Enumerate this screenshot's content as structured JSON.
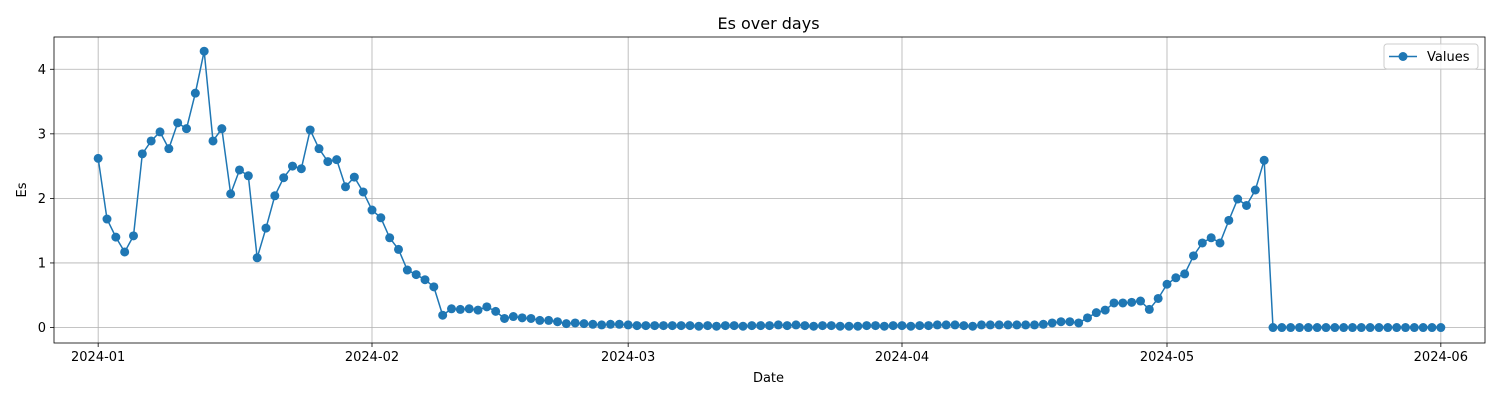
{
  "chart_data": {
    "type": "line",
    "title": "Es over days",
    "xlabel": "Date",
    "ylabel": "Es",
    "xlim": [
      "2023-12-27",
      "2024-06-06"
    ],
    "ylim": [
      -0.24,
      4.5
    ],
    "grid": true,
    "legend_position": "top-right",
    "x_ticks": [
      "2024-01-01",
      "2024-02-01",
      "2024-03-01",
      "2024-04-01",
      "2024-05-01",
      "2024-06-01"
    ],
    "x_tick_labels": [
      "2024-01",
      "2024-02",
      "2024-03",
      "2024-04",
      "2024-05",
      "2024-06"
    ],
    "y_ticks": [
      0,
      1,
      2,
      3,
      4
    ],
    "y_tick_labels": [
      "0",
      "1",
      "2",
      "3",
      "4"
    ],
    "x_start": "2024-01-01",
    "x_step_days": 1,
    "series": [
      {
        "name": "Values",
        "color": "#1f77b4",
        "marker": "circle",
        "values": [
          2.62,
          1.68,
          1.4,
          1.17,
          1.42,
          2.69,
          2.89,
          3.03,
          2.77,
          3.17,
          3.08,
          3.63,
          4.28,
          2.89,
          3.08,
          2.07,
          2.44,
          2.35,
          1.08,
          1.54,
          2.04,
          2.32,
          2.5,
          2.46,
          3.06,
          2.77,
          2.57,
          2.6,
          2.18,
          2.33,
          2.1,
          1.82,
          1.7,
          1.39,
          1.21,
          0.89,
          0.82,
          0.74,
          0.63,
          0.19,
          0.29,
          0.28,
          0.29,
          0.27,
          0.32,
          0.25,
          0.14,
          0.17,
          0.15,
          0.14,
          0.11,
          0.11,
          0.09,
          0.06,
          0.07,
          0.06,
          0.05,
          0.04,
          0.05,
          0.05,
          0.04,
          0.03,
          0.03,
          0.03,
          0.03,
          0.03,
          0.03,
          0.03,
          0.02,
          0.03,
          0.02,
          0.03,
          0.03,
          0.02,
          0.03,
          0.03,
          0.03,
          0.04,
          0.03,
          0.04,
          0.03,
          0.02,
          0.03,
          0.03,
          0.02,
          0.02,
          0.02,
          0.03,
          0.03,
          0.02,
          0.03,
          0.03,
          0.02,
          0.03,
          0.03,
          0.04,
          0.04,
          0.04,
          0.03,
          0.02,
          0.04,
          0.04,
          0.04,
          0.04,
          0.04,
          0.04,
          0.04,
          0.05,
          0.07,
          0.09,
          0.09,
          0.07,
          0.15,
          0.23,
          0.27,
          0.38,
          0.38,
          0.39,
          0.41,
          0.28,
          0.45,
          0.67,
          0.77,
          0.83,
          1.11,
          1.31,
          1.39,
          1.31,
          1.66,
          1.99,
          1.89,
          2.13,
          2.59,
          0.0,
          0.0,
          0.0,
          0.0,
          0.0,
          0.0,
          0.0,
          0.0,
          0.0,
          0.0,
          0.0,
          0.0,
          0.0,
          0.0,
          0.0,
          0.0,
          0.0,
          0.0,
          0.0,
          0.0
        ]
      }
    ]
  }
}
